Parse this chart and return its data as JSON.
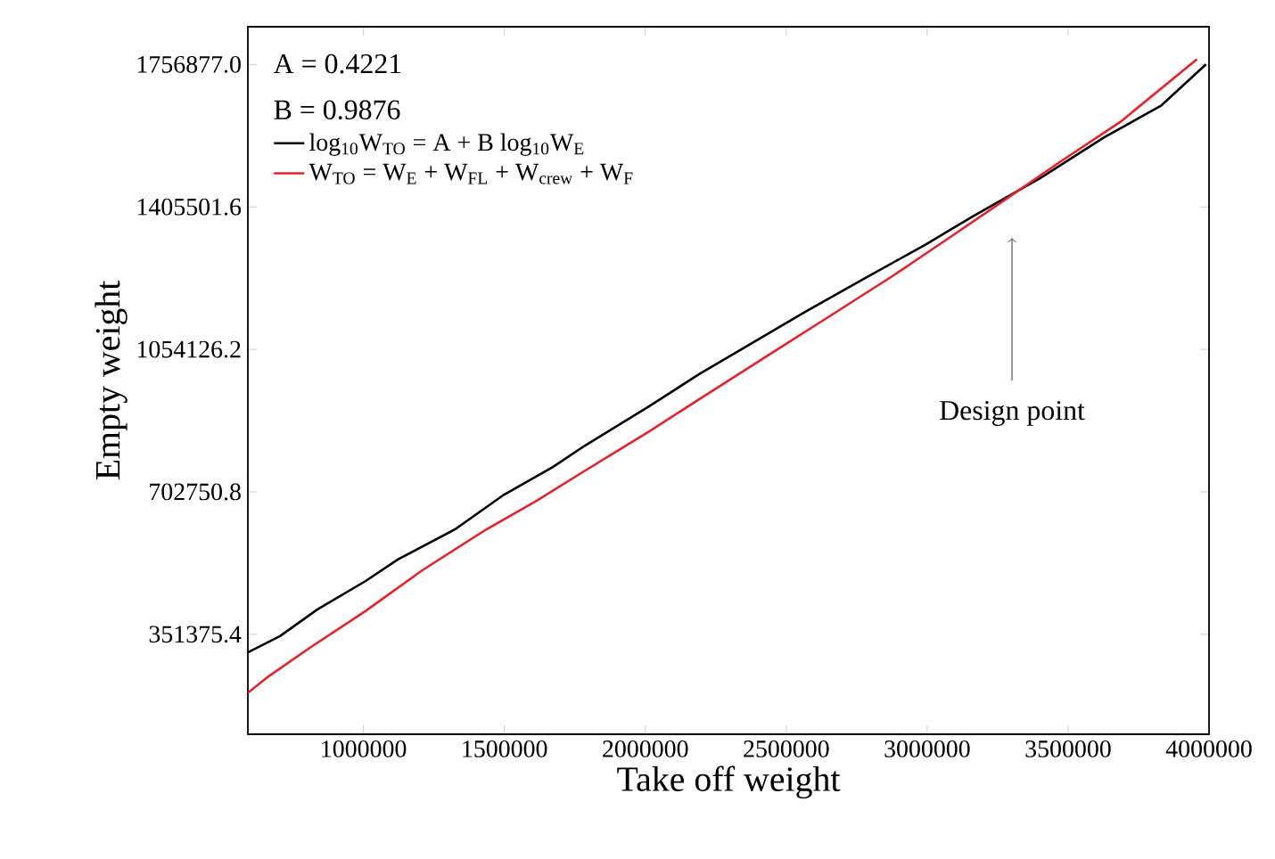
{
  "chart_data": {
    "type": "line",
    "xlabel": "Take off weight",
    "ylabel": "Empty weight",
    "xlim": [
      590000,
      4000000
    ],
    "ylim": [
      105000,
      1850000
    ],
    "xticks": [
      1000000,
      1500000,
      2000000,
      2500000,
      3000000,
      3500000,
      4000000
    ],
    "yticks": [
      351375.4,
      702750.8,
      1054126.2,
      1405501.6,
      {
        "value": 1756877.0,
        "label": "1756877.0"
      }
    ],
    "legend": "top left",
    "grid": false,
    "marker": "none",
    "line_style": "solid",
    "annotations": [
      "A = 0.4221",
      "B = 0.9876",
      "Design point"
    ],
    "series": [
      {
        "name": "log$_{10}$W$_{TO}$ = A + B log$_{10}$W$_{E}$",
        "color": "#000000",
        "x": [
          590000,
          704000,
          837000,
          1008000,
          1122000,
          1324000,
          1495000,
          1672000,
          1786000,
          2014000,
          2191000,
          2362000,
          2565000,
          2767000,
          2995000,
          3166000,
          3400000,
          3628000,
          3831000,
          3989000
        ],
        "values": [
          307000,
          347000,
          413000,
          483000,
          536000,
          610000,
          694000,
          764000,
          817000,
          914000,
          993000,
          1063000,
          1146000,
          1225000,
          1313000,
          1384000,
          1476000,
          1577000,
          1656000,
          1757000
        ]
      },
      {
        "name": "W$_{TO}$ = W$_{E}$ + W$_{FL}$ + W$_{crew}$ + W$_{F}$",
        "color": "#e8202a",
        "x": [
          590000,
          660000,
          805000,
          1008000,
          1210000,
          1438000,
          1615000,
          1786000,
          2014000,
          2191000,
          2419000,
          2647000,
          2875000,
          3109000,
          3280000,
          3457000,
          3685000,
          3957000
        ],
        "values": [
          207000,
          246000,
          316000,
          409000,
          510000,
          611000,
          681000,
          755000,
          852000,
          931000,
          1032000,
          1133000,
          1234000,
          1344000,
          1425000,
          1510000,
          1615000,
          1770000
        ]
      }
    ]
  }
}
